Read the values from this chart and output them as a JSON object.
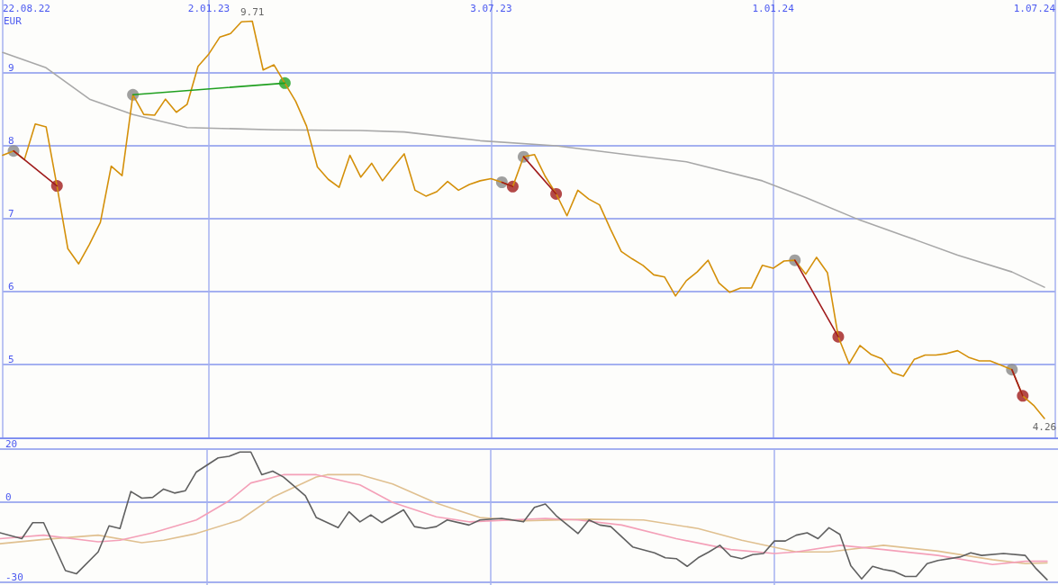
{
  "chart_data": [
    {
      "type": "line",
      "ylabel": "EUR",
      "xlim": [
        "2022-08-22",
        "2024-07-01"
      ],
      "ylim": [
        4,
        10
      ],
      "yticks": [
        5,
        6,
        7,
        8,
        9
      ],
      "xticks": [
        {
          "value": "2022-08-22",
          "label": "22.08.22"
        },
        {
          "value": "2023-01-02",
          "label": "2.01.23"
        },
        {
          "value": "2023-07-03",
          "label": "3.07.23"
        },
        {
          "value": "2024-01-01",
          "label": "1.01.24"
        },
        {
          "value": "2024-07-01",
          "label": "1.07.24"
        }
      ],
      "grid": true,
      "marker": "none",
      "line_style": "solid",
      "x": [
        "2022-08-22",
        "2022-08-29",
        "2022-09-05",
        "2022-09-12",
        "2022-09-19",
        "2022-09-26",
        "2022-10-03",
        "2022-10-10",
        "2022-10-17",
        "2022-10-24",
        "2022-10-31",
        "2022-11-07",
        "2022-11-14",
        "2022-11-21",
        "2022-11-28",
        "2022-12-05",
        "2022-12-12",
        "2022-12-19",
        "2022-12-26",
        "2023-01-02",
        "2023-01-09",
        "2023-01-16",
        "2023-01-23",
        "2023-01-30",
        "2023-02-06",
        "2023-02-13",
        "2023-02-20",
        "2023-02-27",
        "2023-03-06",
        "2023-03-13",
        "2023-03-20",
        "2023-03-27",
        "2023-04-03",
        "2023-04-10",
        "2023-04-17",
        "2023-04-24",
        "2023-05-01",
        "2023-05-08",
        "2023-05-15",
        "2023-05-22",
        "2023-05-29",
        "2023-06-05",
        "2023-06-12",
        "2023-06-19",
        "2023-06-26",
        "2023-07-03",
        "2023-07-10",
        "2023-07-17",
        "2023-07-24",
        "2023-07-31",
        "2023-08-07",
        "2023-08-14",
        "2023-08-21",
        "2023-08-28",
        "2023-09-04",
        "2023-09-11",
        "2023-09-18",
        "2023-09-25",
        "2023-10-02",
        "2023-10-09",
        "2023-10-16",
        "2023-10-23",
        "2023-10-30",
        "2023-11-06",
        "2023-11-13",
        "2023-11-20",
        "2023-11-27",
        "2023-12-04",
        "2023-12-11",
        "2023-12-18",
        "2023-12-25",
        "2024-01-01",
        "2024-01-08",
        "2024-01-15",
        "2024-01-22",
        "2024-01-29",
        "2024-02-05",
        "2024-02-12",
        "2024-02-19",
        "2024-02-26",
        "2024-03-04",
        "2024-03-11",
        "2024-03-18",
        "2024-03-25",
        "2024-04-01",
        "2024-04-08",
        "2024-04-15",
        "2024-04-22",
        "2024-04-29",
        "2024-05-06",
        "2024-05-13",
        "2024-05-20",
        "2024-05-27",
        "2024-06-03",
        "2024-06-10",
        "2024-06-17",
        "2024-06-24"
      ],
      "series": [
        {
          "type": "line",
          "color": "#a8a8a8",
          "x": [
            "2022-08-22",
            "2022-09-19",
            "2022-10-17",
            "2022-11-14",
            "2022-12-19",
            "2023-02-13",
            "2023-04-10",
            "2023-05-08",
            "2023-06-26",
            "2023-08-14",
            "2023-10-02",
            "2023-11-06",
            "2023-12-25",
            "2024-01-22",
            "2024-02-26",
            "2024-03-25",
            "2024-04-29",
            "2024-06-03",
            "2024-06-24"
          ],
          "values": [
            9.28,
            9.07,
            8.64,
            8.43,
            8.25,
            8.22,
            8.21,
            8.19,
            8.07,
            8.0,
            7.87,
            7.78,
            7.52,
            7.29,
            6.98,
            6.77,
            6.5,
            6.27,
            6.06
          ]
        },
        {
          "type": "line",
          "color": "#d4900a",
          "values": [
            7.87,
            7.93,
            7.81,
            8.3,
            8.26,
            7.45,
            6.59,
            6.38,
            6.65,
            6.95,
            7.72,
            7.59,
            8.7,
            8.43,
            8.42,
            8.64,
            8.46,
            8.57,
            9.09,
            9.26,
            9.49,
            9.54,
            9.7,
            9.71,
            9.04,
            9.11,
            8.86,
            8.61,
            8.27,
            7.71,
            7.54,
            7.43,
            7.87,
            7.57,
            7.76,
            7.52,
            7.71,
            7.89,
            7.39,
            7.31,
            7.37,
            7.51,
            7.39,
            7.47,
            7.52,
            7.55,
            7.5,
            7.44,
            7.85,
            7.88,
            7.58,
            7.34,
            7.04,
            7.39,
            7.27,
            7.19,
            6.86,
            6.55,
            6.45,
            6.36,
            6.23,
            6.2,
            5.94,
            6.15,
            6.27,
            6.43,
            6.12,
            5.99,
            6.05,
            6.05,
            6.36,
            6.32,
            6.42,
            6.43,
            6.24,
            6.47,
            6.26,
            5.38,
            5.01,
            5.26,
            5.14,
            5.08,
            4.89,
            4.84,
            5.07,
            5.13,
            5.13,
            5.15,
            5.19,
            5.1,
            5.05,
            5.05,
            4.99,
            4.93,
            4.57,
            4.44,
            4.26
          ]
        },
        {
          "type": "line",
          "color": "#a01c1c",
          "x": [
            "2022-08-29",
            "2022-09-26"
          ],
          "values": [
            7.93,
            7.45
          ]
        },
        {
          "type": "line",
          "color": "#20a020",
          "x": [
            "2022-11-14",
            "2023-02-20"
          ],
          "values": [
            8.7,
            8.86
          ]
        },
        {
          "type": "line",
          "color": "#a01c1c",
          "x": [
            "2023-07-10",
            "2023-07-17"
          ],
          "values": [
            7.5,
            7.44
          ]
        },
        {
          "type": "line",
          "color": "#a01c1c",
          "x": [
            "2023-07-24",
            "2023-08-14"
          ],
          "values": [
            7.85,
            7.34
          ]
        },
        {
          "type": "line",
          "color": "#a01c1c",
          "x": [
            "2024-01-15",
            "2024-02-12"
          ],
          "values": [
            6.43,
            5.38
          ]
        },
        {
          "type": "line",
          "color": "#a01c1c",
          "x": [
            "2024-06-03",
            "2024-06-10"
          ],
          "values": [
            4.93,
            4.57
          ]
        },
        {
          "type": "scatter",
          "marker": "circle",
          "color": "#888888",
          "x": [
            "2022-08-29",
            "2022-11-14",
            "2023-07-10",
            "2023-07-24",
            "2024-01-15",
            "2024-06-03"
          ],
          "values": [
            7.93,
            8.7,
            7.5,
            7.85,
            6.43,
            4.93
          ]
        },
        {
          "type": "scatter",
          "marker": "circle",
          "color": "#a01c1c",
          "colors": [
            "#a01c1c",
            "#20a020",
            "#a01c1c",
            "#a01c1c",
            "#a01c1c",
            "#a01c1c"
          ],
          "x": [
            "2022-09-26",
            "2023-02-20",
            "2023-07-17",
            "2023-08-14",
            "2024-02-12",
            "2024-06-10"
          ],
          "values": [
            7.45,
            8.86,
            7.44,
            7.34,
            5.38,
            4.57
          ]
        }
      ],
      "annotations": [
        {
          "text": "9.71",
          "x": "2023-01-30",
          "y": 9.71
        },
        {
          "text": "4.26",
          "x": "2024-06-24",
          "y": 4.26
        }
      ]
    },
    {
      "type": "line",
      "xlim": [
        "2022-08-22",
        "2024-07-01"
      ],
      "ylim": [
        -31,
        20
      ],
      "yticks": [
        20,
        0,
        -30
      ],
      "xticks": [
        {
          "value": "2023-01-02",
          "label": null
        },
        {
          "value": "2023-07-03",
          "label": null
        },
        {
          "value": "2024-01-01",
          "label": null
        }
      ],
      "grid": true,
      "tick_labels": "y",
      "marker": "none",
      "line_style": "solid",
      "series": [
        {
          "color": "#e0c090",
          "x": [
            "2022-08-22",
            "2022-09-19",
            "2022-10-24",
            "2022-11-21",
            "2022-12-05",
            "2022-12-26",
            "2023-01-23",
            "2023-02-13",
            "2023-03-13",
            "2023-03-20",
            "2023-04-10",
            "2023-05-01",
            "2023-05-29",
            "2023-06-26",
            "2023-07-24",
            "2023-09-04",
            "2023-10-09",
            "2023-11-13",
            "2023-12-11",
            "2024-01-15",
            "2024-02-05",
            "2024-03-11",
            "2024-04-15",
            "2024-05-20",
            "2024-06-10",
            "2024-06-24"
          ],
          "values": [
            -15.5,
            -13.9,
            -12.3,
            -15.1,
            -14.2,
            -11.7,
            -6.6,
            1.9,
            9.5,
            10.4,
            10.4,
            6.9,
            -0.3,
            -5.7,
            -6.9,
            -6.3,
            -6.6,
            -9.8,
            -14.2,
            -18.6,
            -18.6,
            -16.1,
            -18.3,
            -21.5,
            -23.0,
            -22.7
          ]
        },
        {
          "color": "#f4a0b8",
          "x": [
            "2022-08-22",
            "2022-09-19",
            "2022-10-24",
            "2022-11-07",
            "2022-11-28",
            "2022-12-26",
            "2023-01-16",
            "2023-01-30",
            "2023-02-20",
            "2023-03-13",
            "2023-04-10",
            "2023-05-01",
            "2023-05-29",
            "2023-06-19",
            "2023-08-07",
            "2023-08-28",
            "2023-09-25",
            "2023-10-30",
            "2023-12-04",
            "2024-01-01",
            "2024-01-15",
            "2024-02-12",
            "2024-03-11",
            "2024-04-15",
            "2024-05-20",
            "2024-06-10",
            "2024-06-24"
          ],
          "values": [
            -13.6,
            -12.3,
            -14.8,
            -14.2,
            -11.4,
            -6.6,
            0.6,
            7.3,
            10.4,
            10.4,
            6.6,
            0,
            -5.4,
            -7.3,
            -6.0,
            -6.6,
            -8.5,
            -13.6,
            -17.7,
            -19.2,
            -18.6,
            -16.1,
            -17.7,
            -19.9,
            -23.3,
            -22.1,
            -22.1
          ]
        },
        {
          "color": "#606060",
          "x": [
            "2022-08-22",
            "2022-09-05",
            "2022-09-12",
            "2022-09-19",
            "2022-10-03",
            "2022-10-10",
            "2022-10-24",
            "2022-10-31",
            "2022-11-07",
            "2022-11-14",
            "2022-11-21",
            "2022-11-28",
            "2022-12-05",
            "2022-12-12",
            "2022-12-19",
            "2022-12-26",
            "2023-01-09",
            "2023-01-16",
            "2023-01-23",
            "2023-01-30",
            "2023-02-06",
            "2023-02-13",
            "2023-02-20",
            "2023-03-06",
            "2023-03-13",
            "2023-03-27",
            "2023-04-03",
            "2023-04-10",
            "2023-04-17",
            "2023-04-24",
            "2023-05-08",
            "2023-05-15",
            "2023-05-22",
            "2023-05-29",
            "2023-06-05",
            "2023-06-19",
            "2023-06-26",
            "2023-07-10",
            "2023-07-24",
            "2023-07-31",
            "2023-08-07",
            "2023-08-14",
            "2023-08-28",
            "2023-09-04",
            "2023-09-11",
            "2023-09-18",
            "2023-10-02",
            "2023-10-16",
            "2023-10-23",
            "2023-10-30",
            "2023-11-06",
            "2023-11-13",
            "2023-11-20",
            "2023-11-27",
            "2023-12-04",
            "2023-12-11",
            "2023-12-18",
            "2023-12-25",
            "2024-01-01",
            "2024-01-08",
            "2024-01-15",
            "2024-01-22",
            "2024-01-29",
            "2024-02-05",
            "2024-02-12",
            "2024-02-19",
            "2024-02-26",
            "2024-03-04",
            "2024-03-11",
            "2024-03-18",
            "2024-03-25",
            "2024-04-01",
            "2024-04-08",
            "2024-04-15",
            "2024-04-29",
            "2024-05-06",
            "2024-05-13",
            "2024-05-27",
            "2024-06-10",
            "2024-06-17",
            "2024-06-24"
          ],
          "values": [
            -11.4,
            -13.6,
            -7.6,
            -7.6,
            -25.6,
            -26.8,
            -18.6,
            -8.8,
            -9.8,
            4.1,
            1.6,
            1.9,
            5.0,
            3.5,
            4.4,
            11.4,
            16.7,
            17.3,
            18.9,
            18.9,
            10.4,
            11.7,
            9.5,
            2.5,
            -5.7,
            -9.5,
            -3.5,
            -7.3,
            -4.7,
            -7.6,
            -2.8,
            -9.1,
            -9.8,
            -9.1,
            -6.6,
            -8.5,
            -6.6,
            -6.0,
            -7.3,
            -1.9,
            -0.6,
            -5.0,
            -11.7,
            -6.6,
            -8.5,
            -9.1,
            -16.7,
            -18.9,
            -20.8,
            -21.1,
            -24.0,
            -20.8,
            -18.6,
            -16.1,
            -20.2,
            -21.1,
            -19.6,
            -19.2,
            -14.5,
            -14.5,
            -12.3,
            -11.4,
            -13.6,
            -9.5,
            -12.0,
            -23.7,
            -28.7,
            -24.0,
            -25.2,
            -25.9,
            -27.8,
            -27.8,
            -23.0,
            -21.8,
            -20.5,
            -18.9,
            -19.9,
            -19.2,
            -19.9,
            -24.9,
            -29.0
          ]
        }
      ]
    }
  ]
}
